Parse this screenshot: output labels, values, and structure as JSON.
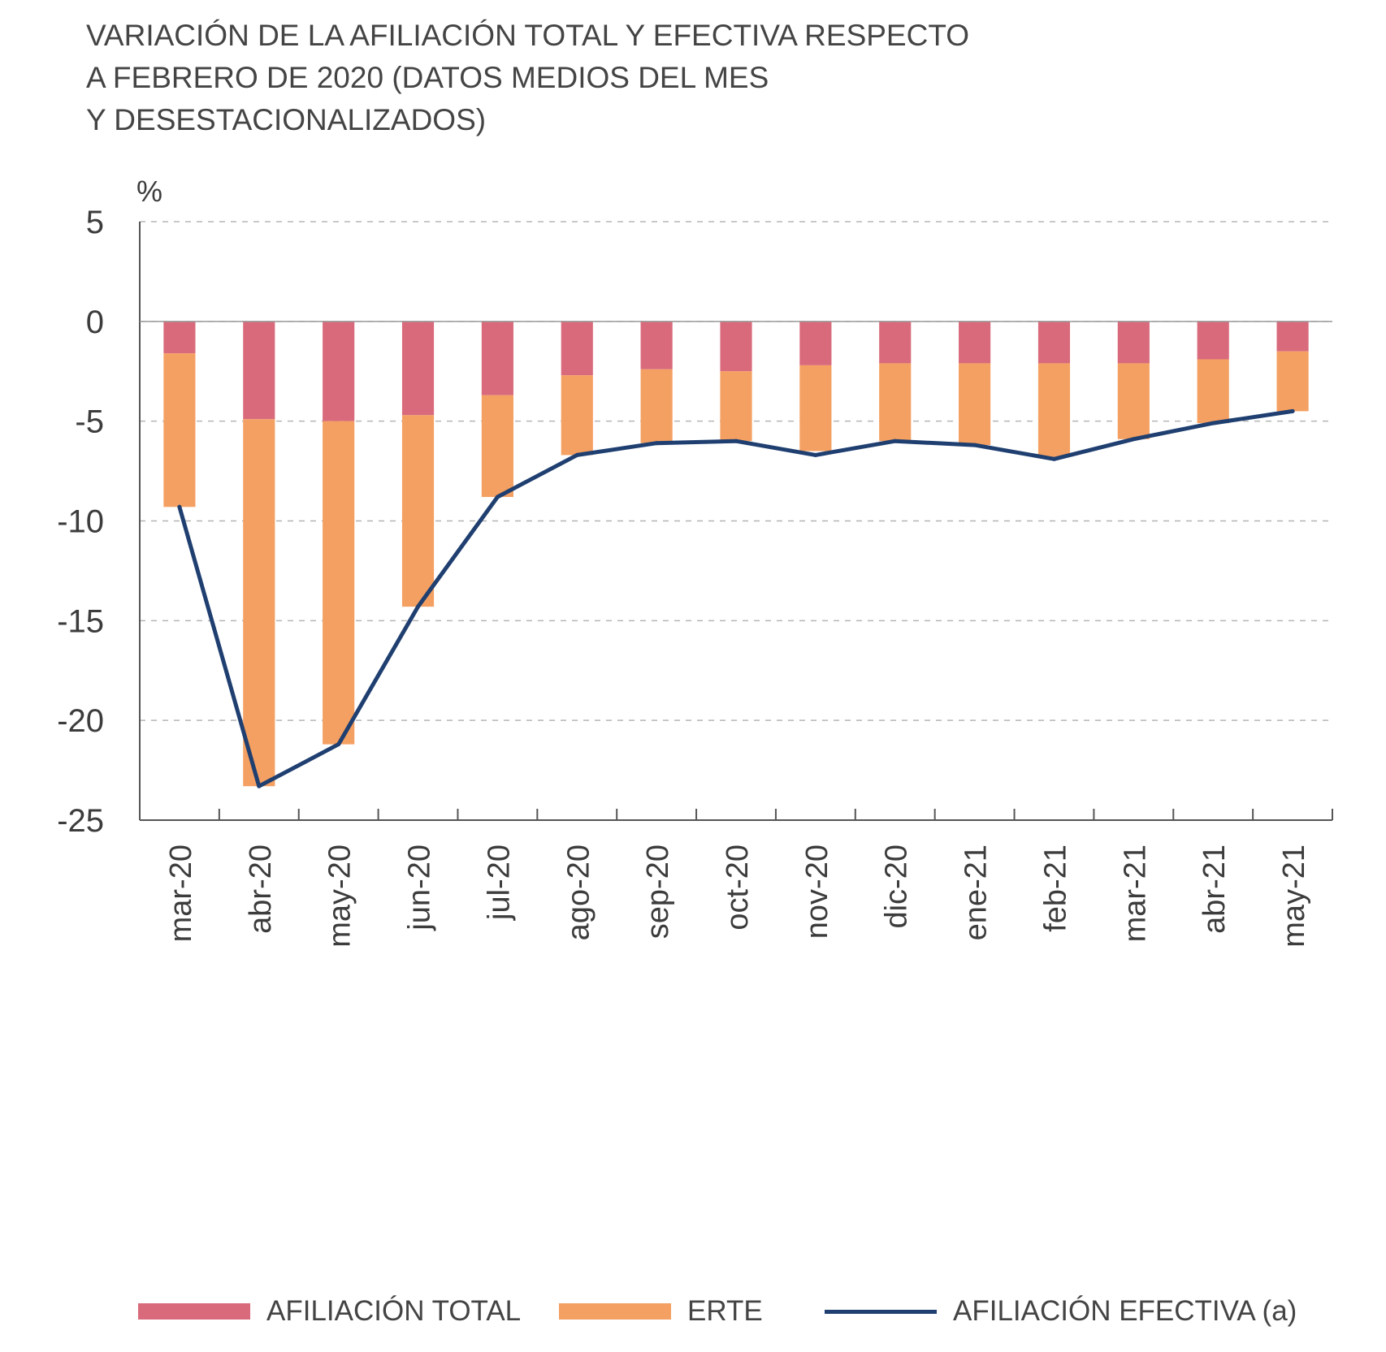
{
  "chart_data": {
    "type": "bar",
    "title_lines": [
      "VARIACIÓN DE LA AFILIACIÓN TOTAL Y EFECTIVA RESPECTO",
      "A FEBRERO DE 2020 (DATOS MEDIOS DEL MES",
      "Y DESESTACIONALIZADOS)"
    ],
    "ylabel": "%",
    "ylim": [
      -25,
      5
    ],
    "yticks": [
      5,
      0,
      -5,
      -10,
      -15,
      -20,
      -25
    ],
    "grid": true,
    "legend_position": "bottom",
    "categories": [
      "mar-20",
      "abr-20",
      "may-20",
      "jun-20",
      "jul-20",
      "ago-20",
      "sep-20",
      "oct-20",
      "nov-20",
      "dic-20",
      "ene-21",
      "feb-21",
      "mar-21",
      "abr-21",
      "may-21"
    ],
    "series": [
      {
        "name": "AFILIACIÓN TOTAL",
        "type": "bar",
        "color": "#d96a7c",
        "values": [
          -1.6,
          -4.9,
          -5.0,
          -4.7,
          -3.7,
          -2.7,
          -2.4,
          -2.5,
          -2.2,
          -2.1,
          -2.1,
          -2.1,
          -2.1,
          -1.9,
          -1.5
        ]
      },
      {
        "name": "ERTE",
        "type": "bar",
        "color": "#f4a062",
        "values": [
          -7.7,
          -18.4,
          -16.2,
          -9.6,
          -5.1,
          -4.0,
          -3.7,
          -3.5,
          -4.3,
          -3.9,
          -4.1,
          -4.7,
          -3.8,
          -3.2,
          -3.0
        ]
      },
      {
        "name": "AFILIACIÓN EFECTIVA (a)",
        "type": "line",
        "color": "#1f3f70",
        "values": [
          -9.3,
          -23.3,
          -21.2,
          -14.3,
          -8.8,
          -6.7,
          -6.1,
          -6.0,
          -6.7,
          -6.0,
          -6.2,
          -6.9,
          -5.9,
          -5.1,
          -4.5
        ]
      }
    ]
  }
}
